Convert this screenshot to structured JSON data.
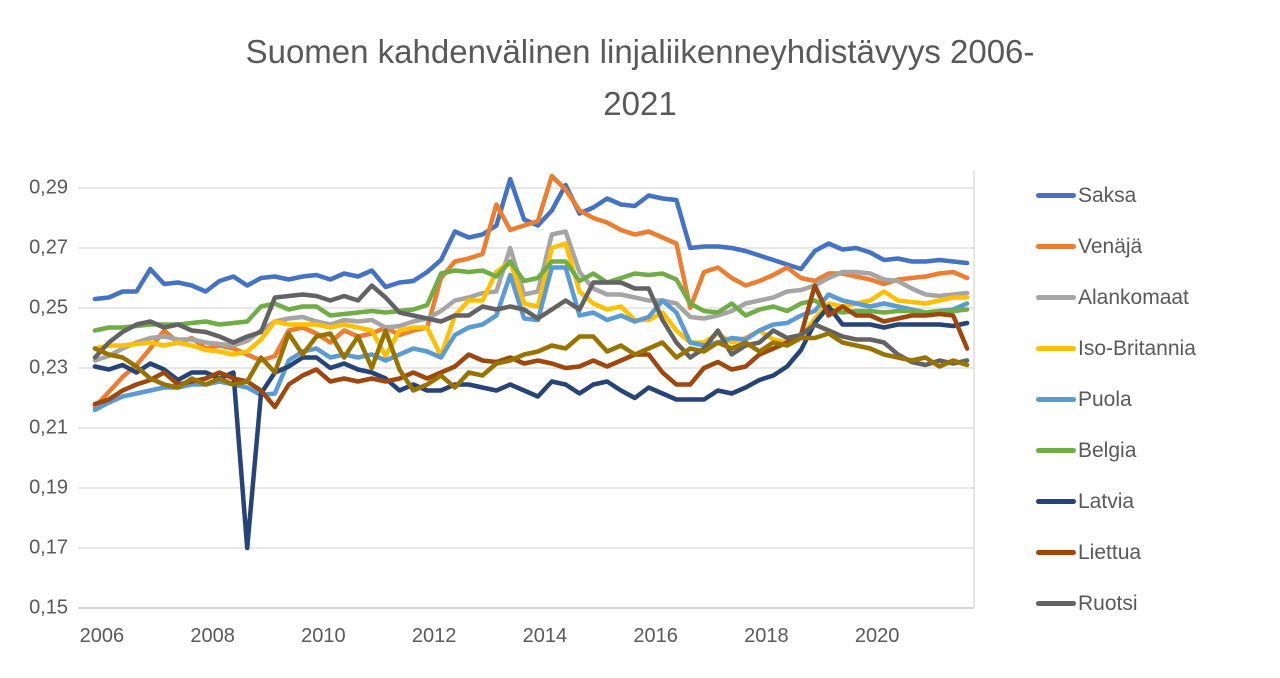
{
  "title": {
    "line1": "Suomen kahdenvälinen linjaliikenneyhdistävyys 2006-",
    "line2": "2021"
  },
  "colors": {
    "background": "#FFFFFF",
    "title_text": "#595959",
    "axis_text": "#595959",
    "gridline": "#D9D9D9",
    "axis_line": "#BFBFBF"
  },
  "legend": {
    "position": "right",
    "items": [
      {
        "label": "Saksa",
        "color": "#4472C4"
      },
      {
        "label": "Venäjä",
        "color": "#ED7D31"
      },
      {
        "label": "Alankomaat",
        "color": "#A5A5A5"
      },
      {
        "label": "Iso-Britannia",
        "color": "#FFC000"
      },
      {
        "label": "Puola",
        "color": "#5B9BD5"
      },
      {
        "label": "Belgia",
        "color": "#70AD47"
      },
      {
        "label": "Latvia",
        "color": "#264478"
      },
      {
        "label": "Liettua",
        "color": "#9E480E"
      },
      {
        "label": "Ruotsi",
        "color": "#636363"
      }
    ]
  },
  "chart_data": {
    "type": "line",
    "title": "Suomen kahdenvälinen linjaliikenneyhdistävyys 2006-2021",
    "xlabel": "",
    "ylabel": "",
    "x_unit": "quarter",
    "points_per_series": 64,
    "x_range_years": [
      2006,
      2021
    ],
    "x_tick_labels": [
      "2006",
      "2008",
      "2010",
      "2012",
      "2014",
      "2016",
      "2018",
      "2020"
    ],
    "x_tick_quarter_index": [
      0,
      8,
      16,
      24,
      32,
      40,
      48,
      56
    ],
    "y_tick_labels": [
      "0,15",
      "0,17",
      "0,19",
      "0,21",
      "0,23",
      "0,25",
      "0,27",
      "0,29"
    ],
    "y_tick_values": [
      0.15,
      0.17,
      0.19,
      0.21,
      0.23,
      0.25,
      0.27,
      0.29
    ],
    "ylim": [
      0.15,
      0.296
    ],
    "grid": "horizontal",
    "legend_position": "right",
    "series": [
      {
        "name": "Saksa",
        "color": "#4472C4",
        "values": [
          0.253,
          0.2535,
          0.2555,
          0.2555,
          0.263,
          0.258,
          0.2585,
          0.2575,
          0.2555,
          0.259,
          0.2605,
          0.2575,
          0.26,
          0.2605,
          0.2595,
          0.2605,
          0.261,
          0.2595,
          0.2615,
          0.2605,
          0.2625,
          0.257,
          0.2585,
          0.259,
          0.262,
          0.266,
          0.2755,
          0.2735,
          0.2745,
          0.2775,
          0.293,
          0.2795,
          0.2775,
          0.2825,
          0.291,
          0.2815,
          0.2835,
          0.2865,
          0.2845,
          0.284,
          0.2875,
          0.2865,
          0.286,
          0.27,
          0.2705,
          0.2705,
          0.27,
          0.269,
          0.2675,
          0.266,
          0.2645,
          0.263,
          0.269,
          0.2715,
          0.2695,
          0.27,
          0.2685,
          0.266,
          0.2665,
          0.2655,
          0.2655,
          0.266,
          0.2655,
          0.265
        ]
      },
      {
        "name": "Venäjä",
        "color": "#ED7D31",
        "values": [
          0.217,
          0.222,
          0.227,
          0.231,
          0.2365,
          0.2425,
          0.2385,
          0.24,
          0.2365,
          0.2375,
          0.2365,
          0.2345,
          0.2325,
          0.234,
          0.2425,
          0.2435,
          0.2415,
          0.2385,
          0.2425,
          0.2405,
          0.2415,
          0.2435,
          0.241,
          0.2425,
          0.2435,
          0.26,
          0.2655,
          0.2665,
          0.268,
          0.2845,
          0.276,
          0.2775,
          0.279,
          0.294,
          0.2895,
          0.2825,
          0.28,
          0.2785,
          0.276,
          0.2745,
          0.2755,
          0.2735,
          0.2715,
          0.25,
          0.262,
          0.2635,
          0.26,
          0.2575,
          0.259,
          0.261,
          0.2635,
          0.26,
          0.259,
          0.2615,
          0.2615,
          0.2605,
          0.2595,
          0.258,
          0.2595,
          0.26,
          0.2605,
          0.2615,
          0.262,
          0.26
        ]
      },
      {
        "name": "Alankomaat",
        "color": "#A5A5A5",
        "values": [
          0.2325,
          0.234,
          0.2365,
          0.2385,
          0.24,
          0.2405,
          0.2395,
          0.2395,
          0.2385,
          0.238,
          0.2375,
          0.239,
          0.2425,
          0.2455,
          0.2465,
          0.247,
          0.2455,
          0.2445,
          0.246,
          0.2455,
          0.246,
          0.2435,
          0.244,
          0.2455,
          0.2465,
          0.249,
          0.2525,
          0.2535,
          0.255,
          0.2555,
          0.27,
          0.2545,
          0.2555,
          0.2745,
          0.2755,
          0.262,
          0.2565,
          0.2545,
          0.2545,
          0.2535,
          0.2525,
          0.2525,
          0.2515,
          0.247,
          0.2465,
          0.2475,
          0.249,
          0.2515,
          0.2525,
          0.2535,
          0.2555,
          0.256,
          0.2575,
          0.26,
          0.262,
          0.262,
          0.2615,
          0.2595,
          0.259,
          0.2565,
          0.2545,
          0.254,
          0.2545,
          0.255
        ]
      },
      {
        "name": "Iso-Britannia",
        "color": "#FFC000",
        "values": [
          0.2365,
          0.2375,
          0.2375,
          0.238,
          0.2385,
          0.2375,
          0.2385,
          0.2375,
          0.236,
          0.2355,
          0.2345,
          0.2355,
          0.2395,
          0.2455,
          0.2445,
          0.2445,
          0.2445,
          0.2435,
          0.2445,
          0.2435,
          0.2425,
          0.234,
          0.2425,
          0.2435,
          0.2435,
          0.234,
          0.2475,
          0.2525,
          0.2525,
          0.262,
          0.2655,
          0.2515,
          0.2505,
          0.27,
          0.2715,
          0.2555,
          0.2515,
          0.2495,
          0.2505,
          0.246,
          0.246,
          0.2485,
          0.2425,
          0.2385,
          0.2385,
          0.2415,
          0.2385,
          0.24,
          0.2425,
          0.2395,
          0.2385,
          0.24,
          0.2465,
          0.2515,
          0.2505,
          0.2515,
          0.2525,
          0.2555,
          0.2525,
          0.252,
          0.2515,
          0.2525,
          0.2535,
          0.2535
        ]
      },
      {
        "name": "Puola",
        "color": "#5B9BD5",
        "values": [
          0.216,
          0.2185,
          0.2205,
          0.2215,
          0.2225,
          0.2235,
          0.2235,
          0.2245,
          0.2245,
          0.2255,
          0.2245,
          0.2235,
          0.221,
          0.2215,
          0.2325,
          0.2355,
          0.2365,
          0.2335,
          0.2345,
          0.2335,
          0.2345,
          0.2325,
          0.2345,
          0.2365,
          0.2355,
          0.2335,
          0.241,
          0.2435,
          0.2445,
          0.2475,
          0.261,
          0.2465,
          0.246,
          0.2635,
          0.2635,
          0.2475,
          0.2485,
          0.246,
          0.2475,
          0.2455,
          0.247,
          0.2525,
          0.2485,
          0.2385,
          0.2375,
          0.2385,
          0.24,
          0.2395,
          0.2425,
          0.2445,
          0.245,
          0.2475,
          0.249,
          0.2545,
          0.2525,
          0.2515,
          0.2505,
          0.2515,
          0.2505,
          0.2495,
          0.2485,
          0.249,
          0.2495,
          0.2515
        ]
      },
      {
        "name": "Belgia",
        "color": "#70AD47",
        "values": [
          0.2425,
          0.2435,
          0.2435,
          0.244,
          0.2445,
          0.2445,
          0.2445,
          0.245,
          0.2455,
          0.2445,
          0.245,
          0.2455,
          0.2505,
          0.2515,
          0.2495,
          0.2505,
          0.2505,
          0.2475,
          0.248,
          0.2485,
          0.249,
          0.2485,
          0.249,
          0.2495,
          0.251,
          0.2615,
          0.2625,
          0.262,
          0.2625,
          0.2605,
          0.2655,
          0.259,
          0.26,
          0.2655,
          0.2655,
          0.259,
          0.2615,
          0.2585,
          0.26,
          0.2615,
          0.261,
          0.2615,
          0.2595,
          0.2515,
          0.249,
          0.2485,
          0.2515,
          0.2475,
          0.2495,
          0.2505,
          0.249,
          0.2515,
          0.2525,
          0.2495,
          0.2485,
          0.249,
          0.249,
          0.2485,
          0.249,
          0.249,
          0.2485,
          0.249,
          0.249,
          0.2495
        ]
      },
      {
        "name": "Latvia",
        "color": "#264478",
        "values": [
          0.2305,
          0.2295,
          0.231,
          0.2285,
          0.2315,
          0.2295,
          0.226,
          0.2285,
          0.2285,
          0.2265,
          0.2285,
          0.17,
          0.2215,
          0.2285,
          0.2305,
          0.2335,
          0.2335,
          0.23,
          0.2315,
          0.2295,
          0.2285,
          0.2265,
          0.2225,
          0.2245,
          0.2225,
          0.2225,
          0.2245,
          0.2245,
          0.2235,
          0.2225,
          0.2245,
          0.2225,
          0.2205,
          0.2255,
          0.2245,
          0.2215,
          0.2245,
          0.2255,
          0.2225,
          0.22,
          0.2235,
          0.2215,
          0.2195,
          0.2195,
          0.2195,
          0.2225,
          0.2215,
          0.2235,
          0.226,
          0.2275,
          0.2305,
          0.236,
          0.245,
          0.2505,
          0.2445,
          0.2445,
          0.2445,
          0.2435,
          0.2445,
          0.2445,
          0.2445,
          0.2445,
          0.244,
          0.245
        ]
      },
      {
        "name": "Liettua",
        "color": "#9E480E",
        "values": [
          0.218,
          0.2195,
          0.2225,
          0.2245,
          0.226,
          0.2285,
          0.2245,
          0.2255,
          0.2265,
          0.2285,
          0.2265,
          0.2255,
          0.2225,
          0.217,
          0.2245,
          0.2275,
          0.2295,
          0.2255,
          0.2265,
          0.2255,
          0.2265,
          0.2255,
          0.2265,
          0.2285,
          0.2265,
          0.2285,
          0.2305,
          0.2345,
          0.2325,
          0.232,
          0.2335,
          0.2315,
          0.2325,
          0.2315,
          0.23,
          0.2305,
          0.2325,
          0.2305,
          0.2325,
          0.2345,
          0.2345,
          0.2285,
          0.2245,
          0.2245,
          0.23,
          0.232,
          0.2295,
          0.2305,
          0.2345,
          0.2365,
          0.2385,
          0.241,
          0.2575,
          0.2475,
          0.2505,
          0.2475,
          0.2475,
          0.2455,
          0.2465,
          0.2475,
          0.2475,
          0.248,
          0.2475,
          0.2365
        ]
      },
      {
        "name": "Ruotsi",
        "color": "#636363",
        "values": [
          0.2335,
          0.2385,
          0.242,
          0.2445,
          0.2455,
          0.2435,
          0.2445,
          0.2425,
          0.242,
          0.2405,
          0.2385,
          0.2405,
          0.242,
          0.2535,
          0.254,
          0.2545,
          0.254,
          0.2525,
          0.254,
          0.2525,
          0.2575,
          0.2535,
          0.2485,
          0.2475,
          0.2465,
          0.2455,
          0.2475,
          0.2475,
          0.2505,
          0.2495,
          0.2505,
          0.2495,
          0.2465,
          0.2495,
          0.2525,
          0.2495,
          0.2585,
          0.2585,
          0.2585,
          0.2565,
          0.2565,
          0.246,
          0.2385,
          0.2335,
          0.2365,
          0.2425,
          0.2345,
          0.2375,
          0.2385,
          0.2425,
          0.24,
          0.241,
          0.2445,
          0.2425,
          0.2405,
          0.2395,
          0.2395,
          0.2385,
          0.2345,
          0.232,
          0.231,
          0.2325,
          0.2315,
          0.2325
        ]
      },
      {
        "name": "",
        "color": "#997300",
        "values": [
          0.2365,
          0.2345,
          0.2335,
          0.2305,
          0.2265,
          0.2245,
          0.2235,
          0.2265,
          0.2245,
          0.2265,
          0.2245,
          0.2255,
          0.2335,
          0.2285,
          0.2415,
          0.2345,
          0.2405,
          0.2415,
          0.2335,
          0.2405,
          0.23,
          0.2425,
          0.2295,
          0.2225,
          0.2245,
          0.2275,
          0.2235,
          0.2285,
          0.2275,
          0.2315,
          0.2325,
          0.2345,
          0.2355,
          0.2375,
          0.2365,
          0.2405,
          0.2405,
          0.2355,
          0.2375,
          0.2345,
          0.2365,
          0.2385,
          0.2335,
          0.2365,
          0.2355,
          0.2385,
          0.2365,
          0.2385,
          0.2355,
          0.2385,
          0.2375,
          0.24,
          0.24,
          0.2415,
          0.2385,
          0.2375,
          0.2365,
          0.2345,
          0.2335,
          0.2325,
          0.2335,
          0.2305,
          0.2325,
          0.231
        ]
      }
    ]
  }
}
